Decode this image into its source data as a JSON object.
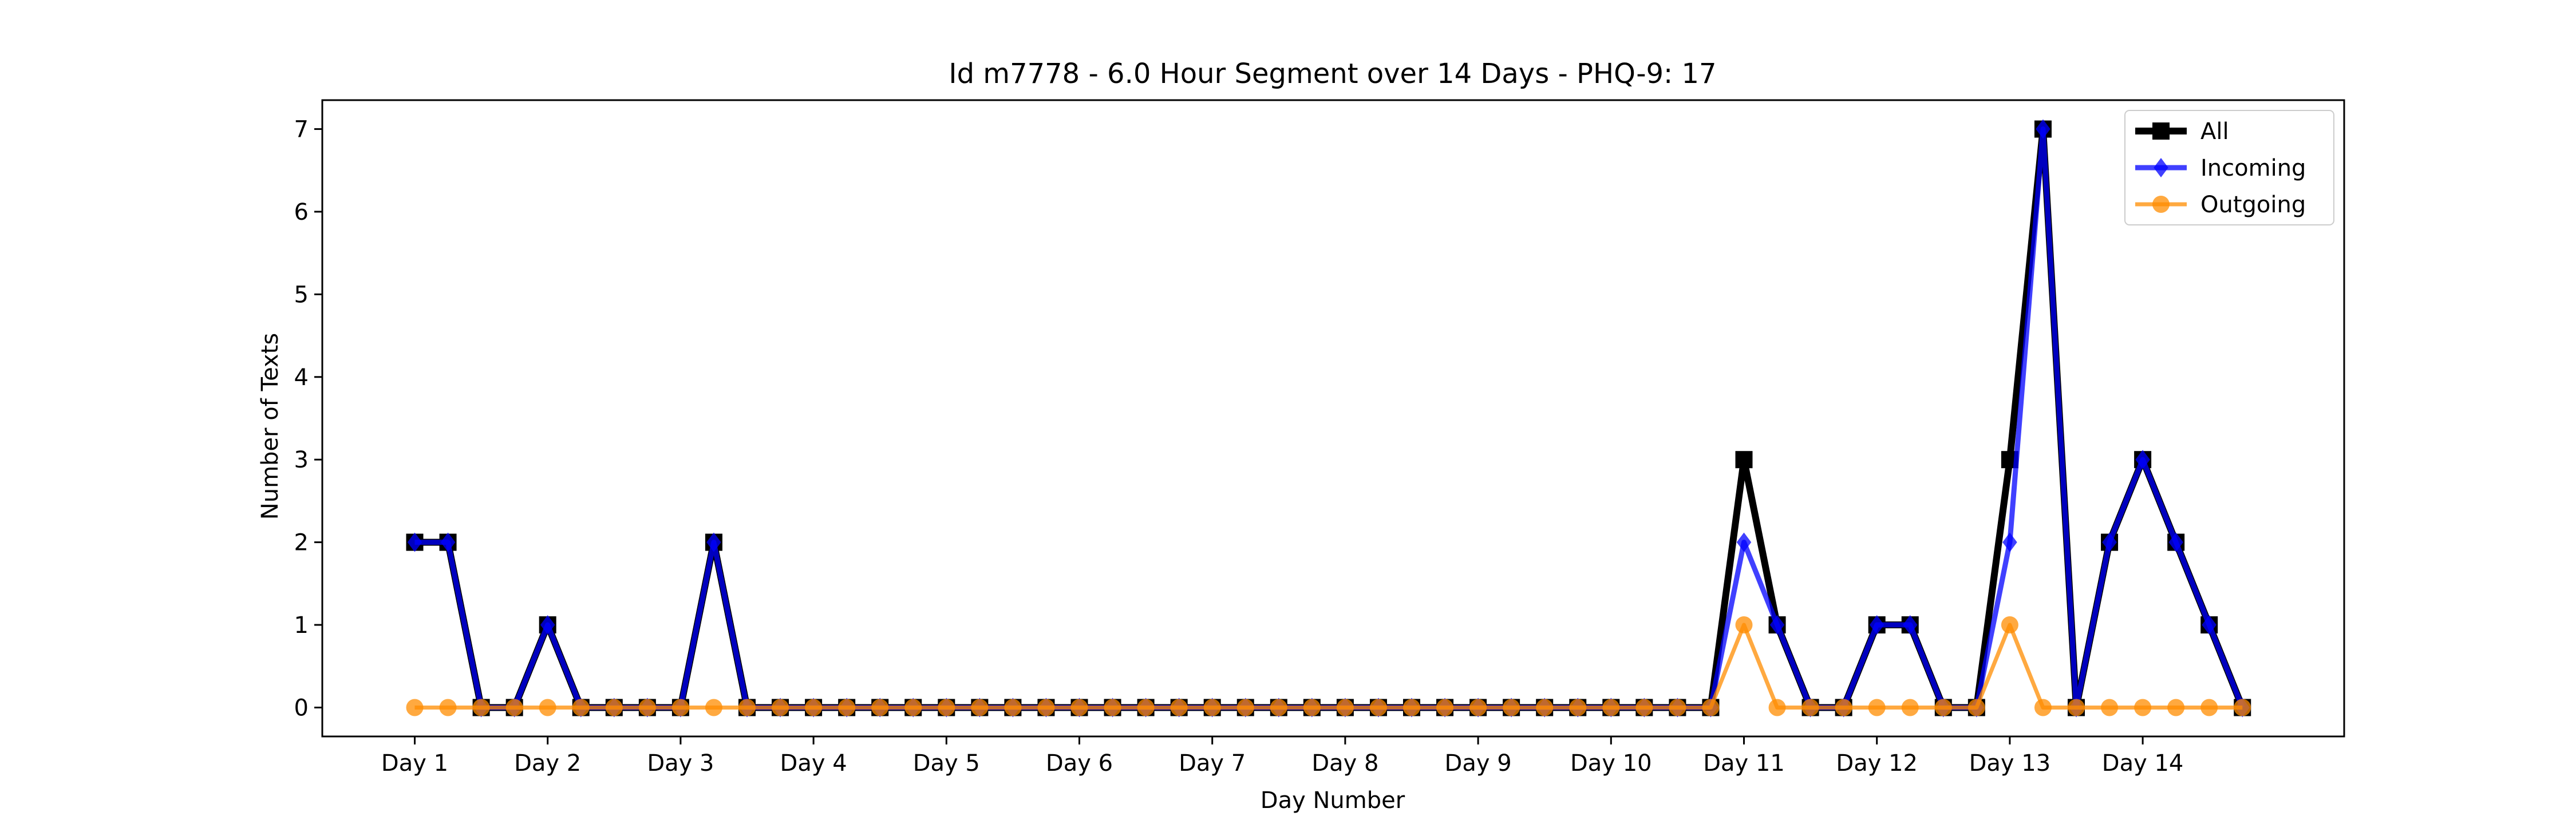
{
  "chart_data": {
    "type": "line",
    "title": "Id m7778 - 6.0 Hour Segment over 14 Days - PHQ-9: 17",
    "xlabel": "Day Number",
    "ylabel": "Number of Texts",
    "x_tick_labels": [
      "Day 1",
      "Day 2",
      "Day 3",
      "Day 4",
      "Day 5",
      "Day 6",
      "Day 7",
      "Day 8",
      "Day 9",
      "Day 10",
      "Day 11",
      "Day 12",
      "Day 13",
      "Day 14"
    ],
    "y_ticks": [
      0,
      1,
      2,
      3,
      4,
      5,
      6,
      7
    ],
    "ylim": [
      -0.35,
      7.35
    ],
    "grid": false,
    "legend_position": "top-right",
    "series": [
      {
        "name": "All",
        "color": "#000000",
        "marker": "square",
        "values": [
          2,
          2,
          0,
          0,
          1,
          0,
          0,
          0,
          0,
          2,
          0,
          0,
          0,
          0,
          0,
          0,
          0,
          0,
          0,
          0,
          0,
          0,
          0,
          0,
          0,
          0,
          0,
          0,
          0,
          0,
          0,
          0,
          0,
          0,
          0,
          0,
          0,
          0,
          0,
          0,
          3,
          1,
          0,
          0,
          1,
          1,
          0,
          0,
          3,
          7,
          0,
          2,
          3,
          2,
          1,
          0
        ]
      },
      {
        "name": "Incoming",
        "color": "#0000ff",
        "marker": "diamond",
        "values": [
          2,
          2,
          0,
          0,
          1,
          0,
          0,
          0,
          0,
          2,
          0,
          0,
          0,
          0,
          0,
          0,
          0,
          0,
          0,
          0,
          0,
          0,
          0,
          0,
          0,
          0,
          0,
          0,
          0,
          0,
          0,
          0,
          0,
          0,
          0,
          0,
          0,
          0,
          0,
          0,
          2,
          1,
          0,
          0,
          1,
          1,
          0,
          0,
          2,
          7,
          0,
          2,
          3,
          2,
          1,
          0
        ]
      },
      {
        "name": "Outgoing",
        "color": "#ff8c00",
        "marker": "circle",
        "values": [
          0,
          0,
          0,
          0,
          0,
          0,
          0,
          0,
          0,
          0,
          0,
          0,
          0,
          0,
          0,
          0,
          0,
          0,
          0,
          0,
          0,
          0,
          0,
          0,
          0,
          0,
          0,
          0,
          0,
          0,
          0,
          0,
          0,
          0,
          0,
          0,
          0,
          0,
          0,
          0,
          1,
          0,
          0,
          0,
          0,
          0,
          0,
          0,
          1,
          0,
          0,
          0,
          0,
          0,
          0,
          0
        ]
      }
    ]
  }
}
